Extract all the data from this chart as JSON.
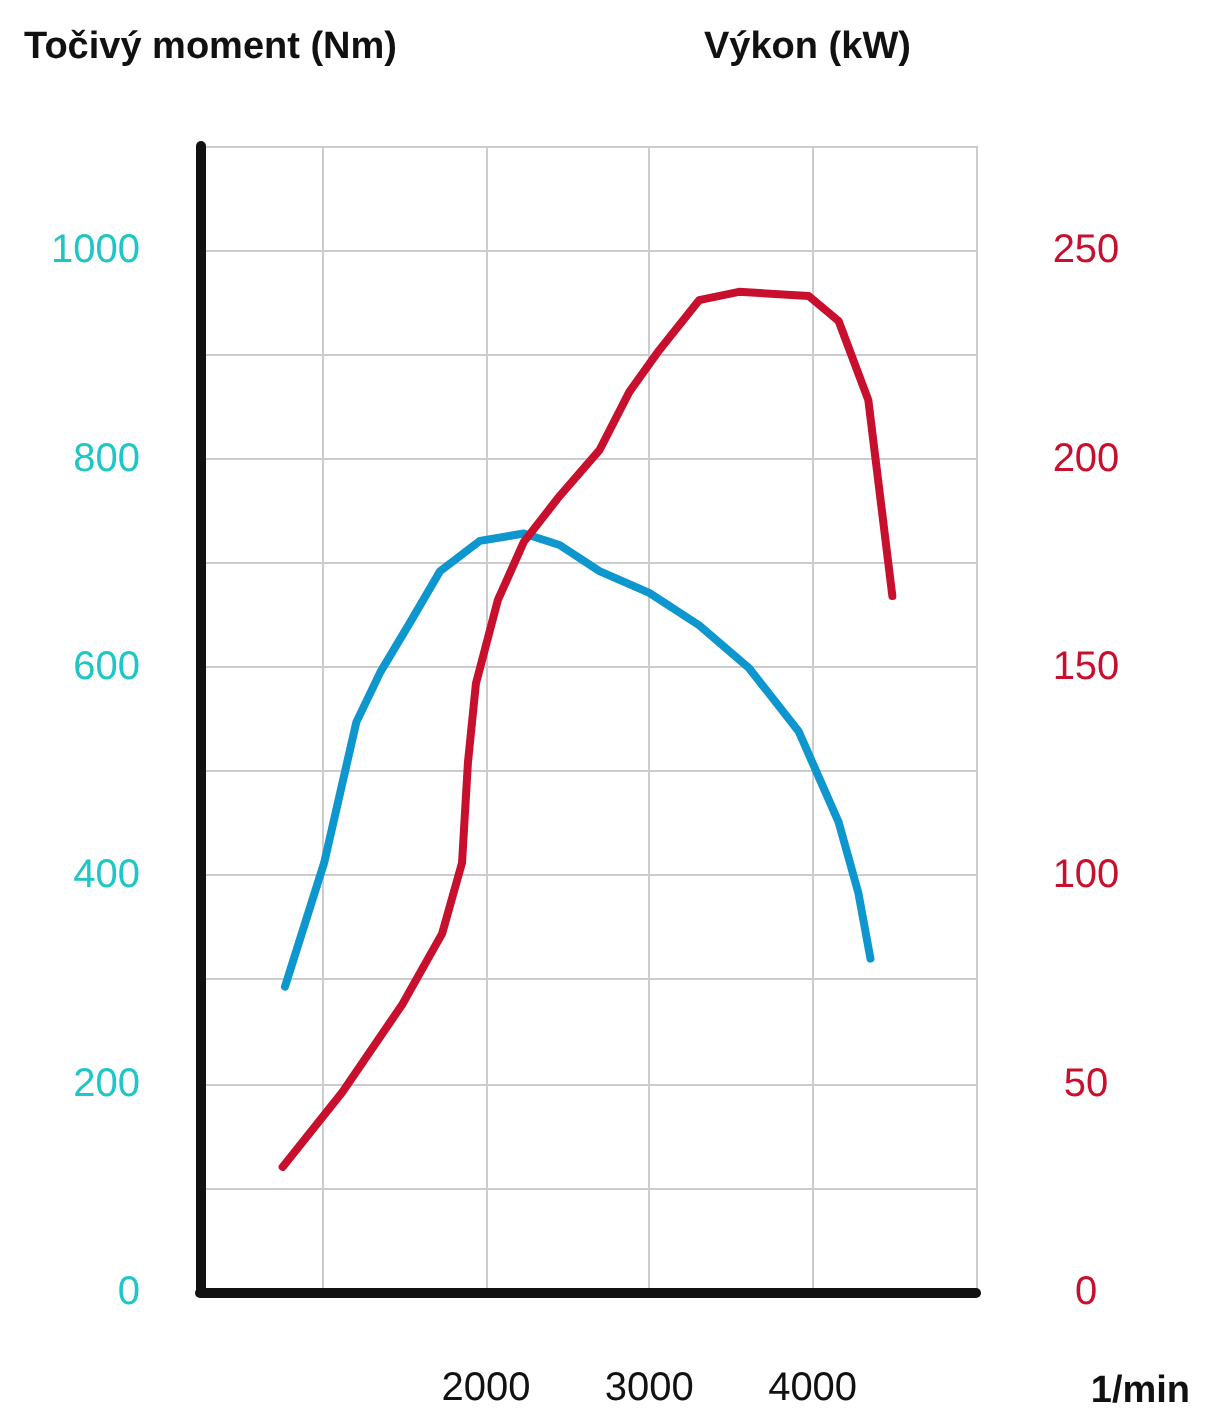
{
  "chart_data": {
    "type": "line",
    "ylabel": "Točivý moment (Nm)",
    "y2label": "Výkon (kW)",
    "xlabel": "1/min",
    "xlim": [
      250,
      5000
    ],
    "xticks": [
      {
        "value": 1000,
        "label": null
      },
      2000,
      3000,
      4000,
      {
        "value": 5000,
        "label": null
      }
    ],
    "ylim": [
      0,
      1100
    ],
    "yticks": [
      0,
      {
        "value": 100,
        "label": null
      },
      200,
      {
        "value": 300,
        "label": null
      },
      400,
      {
        "value": 500,
        "label": null
      },
      600,
      {
        "value": 700,
        "label": null
      },
      800,
      {
        "value": 900,
        "label": null
      },
      1000,
      {
        "value": 1100,
        "label": null
      }
    ],
    "y2lim": [
      0,
      275
    ],
    "y2ticks": [
      0,
      50,
      100,
      150,
      200,
      250
    ],
    "grid": true,
    "marker": "none",
    "line_style": "solid",
    "series": [
      {
        "color": "#0e97cf",
        "x": [
          770,
          1010,
          1207,
          1354,
          1537,
          1720,
          1963,
          2232,
          2451,
          2695,
          3000,
          3305,
          3610,
          3915,
          4159,
          4280,
          4354
        ],
        "values": [
          293,
          412,
          547,
          595,
          643,
          692,
          721,
          728,
          717,
          692,
          671,
          640,
          599,
          538,
          451,
          383,
          320
        ]
      },
      {
        "color": "#c8102e",
        "axis": "y2",
        "x": [
          756,
          1122,
          1488,
          1732,
          1854,
          1890,
          1939,
          2073,
          2232,
          2451,
          2695,
          2878,
          3061,
          3305,
          3549,
          3976,
          4159,
          4341,
          4488
        ],
        "values": [
          30,
          48,
          69,
          86,
          103,
          127,
          146,
          166,
          180,
          191,
          202,
          216,
          226,
          238,
          240,
          239,
          233,
          214,
          167
        ]
      }
    ]
  }
}
